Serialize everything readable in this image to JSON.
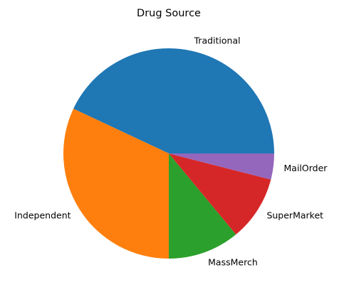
{
  "chart_data": {
    "type": "pie",
    "title": "Drug Source",
    "categories": [
      "Traditional",
      "Independent",
      "MassMerch",
      "SuperMarket",
      "MailOrder"
    ],
    "values": [
      43,
      32,
      11,
      10,
      4
    ],
    "colors": [
      "#1f77b4",
      "#ff7f0e",
      "#2ca02c",
      "#d62728",
      "#9467bd"
    ],
    "start_angle_deg": 0,
    "direction": "counterclockwise",
    "legend": "none"
  }
}
